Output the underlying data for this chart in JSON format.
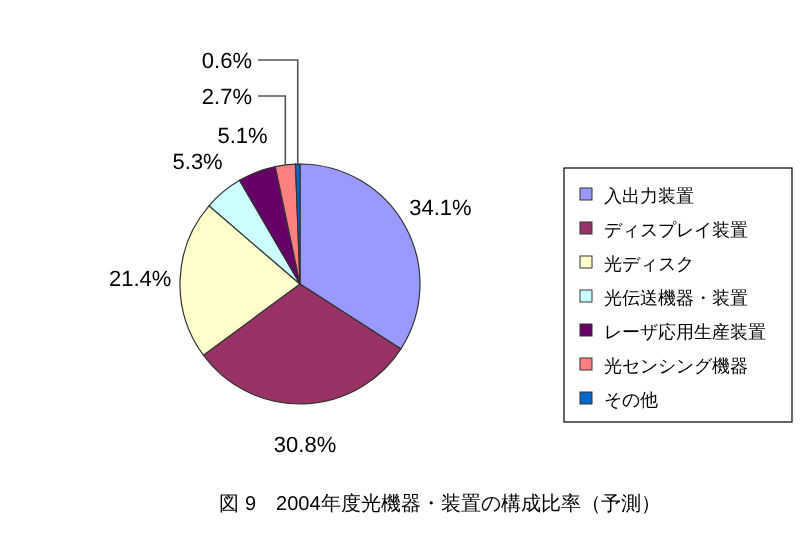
{
  "chart_data": {
    "type": "pie",
    "title": "図 9　2004年度光機器・装置の構成比率（予測）",
    "categories": [
      "入出力装置",
      "ディスプレイ装置",
      "光ディスク",
      "光伝送機器・装置",
      "レーザ応用生産装置",
      "光センシング機器",
      "その他"
    ],
    "values": [
      34.1,
      30.8,
      21.4,
      5.3,
      5.1,
      2.7,
      0.6
    ],
    "colors": [
      "#9999ff",
      "#993366",
      "#ffffcc",
      "#ccffff",
      "#660066",
      "#ff8080",
      "#0066cc"
    ],
    "value_labels": [
      "34.1%",
      "30.8%",
      "21.4%",
      "5.3%",
      "5.1%",
      "2.7%",
      "0.6%"
    ],
    "legend": "right"
  }
}
